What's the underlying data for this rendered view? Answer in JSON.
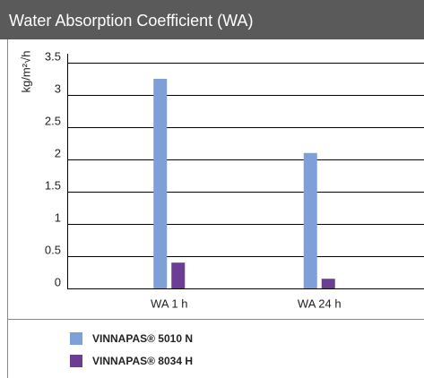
{
  "chart_data": {
    "type": "bar",
    "title": "Water Absorption Coefficient (WA)",
    "y_label": "kg/m²√h",
    "categories": [
      "WA 1 h",
      "WA 24 h"
    ],
    "series": [
      {
        "name": "VINNAPAS® 5010 N",
        "color": "#7f9fd8",
        "values": [
          3.25,
          2.1
        ]
      },
      {
        "name": "VINNAPAS® 8034 H",
        "color": "#6b3e93",
        "values": [
          0.4,
          0.15
        ]
      }
    ],
    "ylim": [
      0,
      3.5
    ],
    "yticks": [
      0,
      0.5,
      1,
      1.5,
      2,
      2.5,
      3,
      3.5
    ],
    "grid": true
  }
}
